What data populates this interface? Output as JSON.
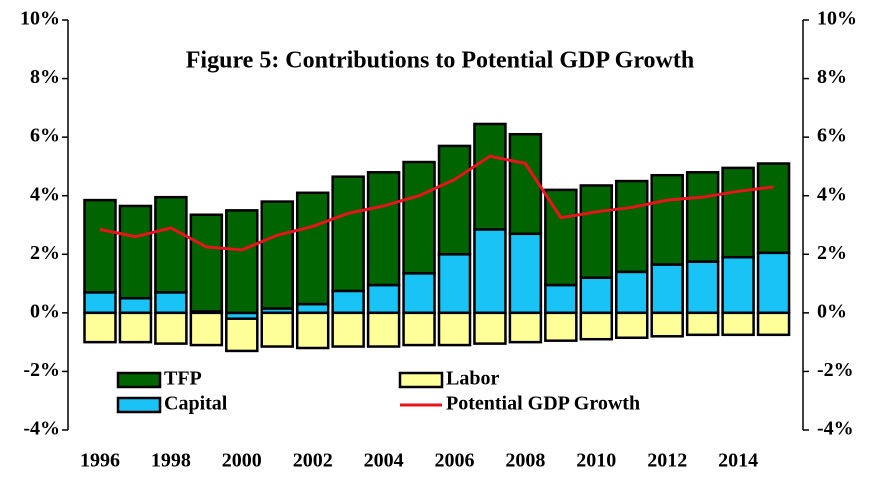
{
  "chart_data": {
    "type": "bar",
    "title": "Figure 5: Contributions to Potential GDP Growth",
    "stacked": true,
    "categories": [
      "1996",
      null,
      "1998",
      null,
      "2000",
      null,
      "2002",
      null,
      "2004",
      null,
      "2006",
      null,
      "2008",
      null,
      "2010",
      null,
      "2012",
      null,
      "2014",
      null
    ],
    "series": [
      {
        "name": "TFP",
        "type": "bar",
        "color": "#006400",
        "values": [
          3.15,
          3.15,
          3.25,
          3.3,
          3.5,
          3.65,
          3.8,
          3.9,
          3.85,
          3.8,
          3.7,
          3.6,
          3.4,
          3.25,
          3.15,
          3.1,
          3.05,
          3.05,
          3.05,
          3.05
        ]
      },
      {
        "name": "Labor",
        "type": "bar",
        "color": "#ffff99",
        "values": [
          -1.0,
          -1.0,
          -1.05,
          -1.1,
          -1.1,
          -1.15,
          -1.2,
          -1.15,
          -1.15,
          -1.1,
          -1.1,
          -1.05,
          -1.0,
          -0.95,
          -0.9,
          -0.85,
          -0.8,
          -0.75,
          -0.75,
          -0.75
        ]
      },
      {
        "name": "Capital",
        "type": "bar",
        "color": "#19c3f5",
        "values": [
          0.7,
          0.5,
          0.7,
          0.05,
          -0.2,
          0.15,
          0.3,
          0.75,
          0.95,
          1.35,
          2.0,
          2.85,
          2.7,
          0.95,
          1.2,
          1.4,
          1.65,
          1.75,
          1.9,
          2.05
        ]
      },
      {
        "name": "Potential GDP Growth",
        "type": "line",
        "color": "#e8141b",
        "values": [
          2.85,
          2.6,
          2.9,
          2.25,
          2.15,
          2.65,
          2.95,
          3.4,
          3.65,
          4.0,
          4.55,
          5.35,
          5.1,
          3.25,
          3.45,
          3.6,
          3.85,
          3.95,
          4.15,
          4.3
        ]
      }
    ],
    "ylim": [
      -4,
      10
    ],
    "yticks": [
      {
        "value": -4,
        "label": "-4%"
      },
      {
        "value": -2,
        "label": "-2%"
      },
      {
        "value": 0,
        "label": "0%"
      },
      {
        "value": 2,
        "label": "2%"
      },
      {
        "value": 4,
        "label": "4%"
      },
      {
        "value": 6,
        "label": "6%"
      },
      {
        "value": 8,
        "label": "8%"
      },
      {
        "value": 10,
        "label": "10%"
      }
    ],
    "y2lim": [
      -4,
      10
    ],
    "y2ticks": [
      {
        "value": -4,
        "label": "-4%"
      },
      {
        "value": -2,
        "label": "-2%"
      },
      {
        "value": 0,
        "label": "0%"
      },
      {
        "value": 2,
        "label": "2%"
      },
      {
        "value": 4,
        "label": "4%"
      },
      {
        "value": 6,
        "label": "6%"
      },
      {
        "value": 8,
        "label": "8%"
      },
      {
        "value": 10,
        "label": "10%"
      }
    ],
    "grid": false,
    "legend": "bottom-left"
  }
}
